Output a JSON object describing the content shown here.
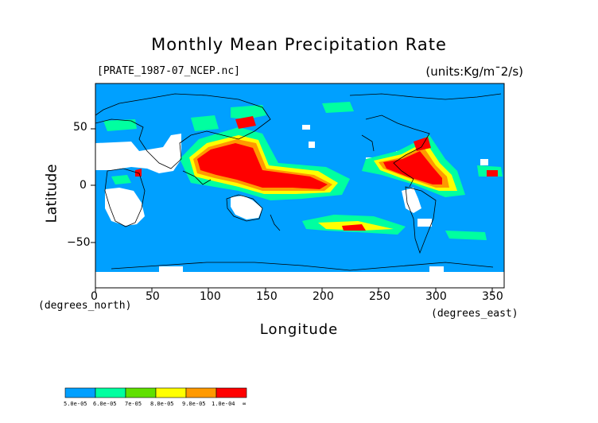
{
  "chart_data": {
    "type": "heatmap",
    "title": "Monthly Mean Precipitation Rate",
    "file_label": "[PRATE_1987-07_NCEP.nc]",
    "units_label": "(units:Kg/m¯2/s)",
    "xlabel": "Longitude",
    "ylabel": "Latitude",
    "x_unit_left": "(degrees_north)",
    "x_unit_right": "(degrees_east)",
    "xlim": [
      0,
      360
    ],
    "ylim": [
      -90,
      90
    ],
    "x_ticks": [
      "0",
      "50",
      "100",
      "150",
      "200",
      "250",
      "300",
      "350"
    ],
    "y_ticks": [
      "50",
      "0",
      "−50"
    ],
    "colorbar": {
      "labels": [
        "5.0e-05",
        "6.0e-05",
        "7e-05",
        "8.0e-05",
        "9.0e-05",
        "1.0e-04",
        "∞"
      ],
      "colors": [
        "#00a0ff",
        "#00ffa0",
        "#60e000",
        "#ffff00",
        "#ff9900",
        "#ff0000"
      ]
    },
    "colors": {
      "background_field": "#00a0ff",
      "missing": "#ffffff",
      "high": "#ff0000",
      "coast": "#000000"
    }
  }
}
